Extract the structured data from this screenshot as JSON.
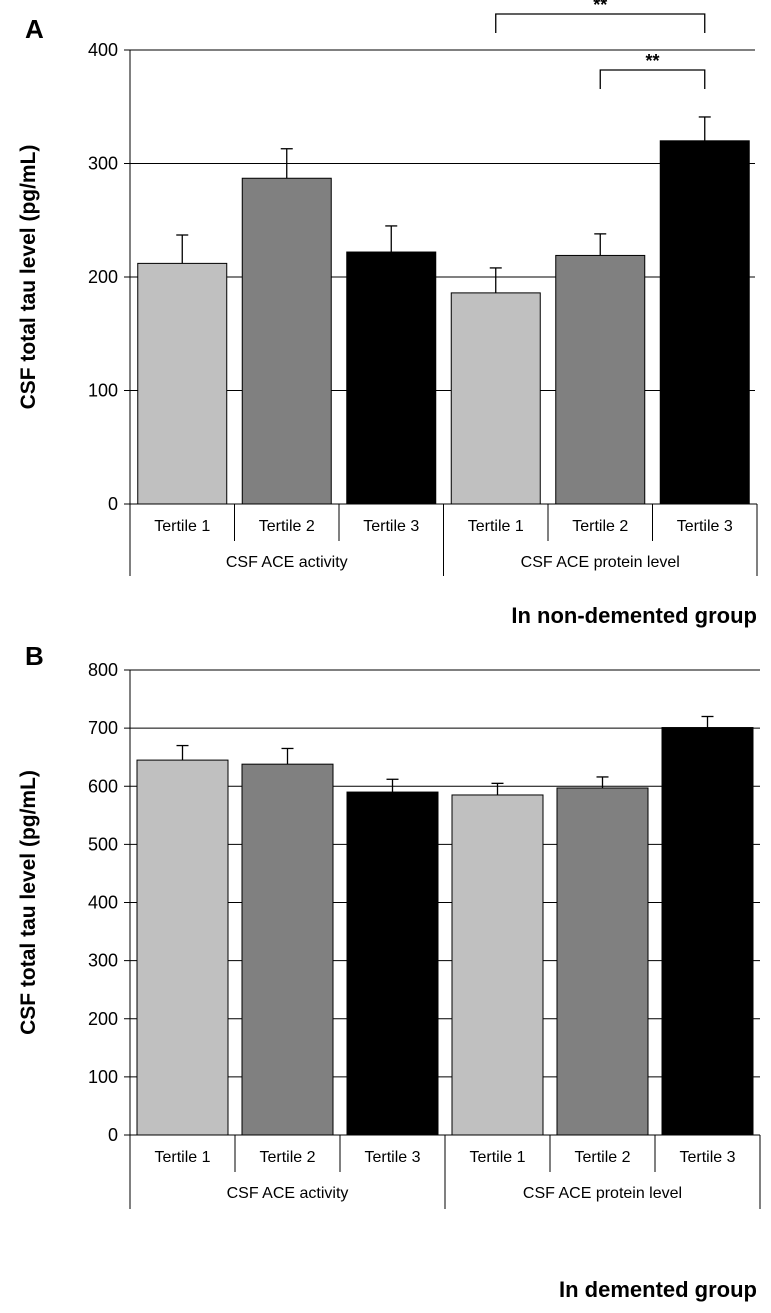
{
  "colors": {
    "tertile_1": "#c0c0c0",
    "tertile_2": "#808080",
    "tertile_3": "#000000",
    "grid": "#000000"
  },
  "chart_data": [
    {
      "type": "bar",
      "panel_label": "A",
      "ylabel": "CSF total tau  level (pg/mL)",
      "ylim": [
        0,
        400
      ],
      "yticks": [
        0,
        100,
        200,
        300,
        400
      ],
      "grid": true,
      "categories": [
        "Tertile 1",
        "Tertile 2",
        "Tertile 3",
        "Tertile 1",
        "Tertile 2",
        "Tertile 3"
      ],
      "groups": [
        {
          "label": "CSF ACE activity",
          "categories": 3
        },
        {
          "label": "CSF ACE protein level",
          "categories": 3
        }
      ],
      "values": [
        212,
        287,
        222,
        186,
        219,
        320
      ],
      "errors": [
        25,
        26,
        23,
        22,
        19,
        21
      ],
      "bar_colors": [
        "#c0c0c0",
        "#808080",
        "#000000",
        "#c0c0c0",
        "#808080",
        "#000000"
      ],
      "significance": [
        {
          "from": 3,
          "to": 5,
          "label": "**"
        },
        {
          "from": 4,
          "to": 5,
          "label": "**"
        }
      ],
      "caption": "In non-demented group"
    },
    {
      "type": "bar",
      "panel_label": "B",
      "ylabel": "CSF total tau  level (pg/mL)",
      "ylim": [
        0,
        800
      ],
      "yticks": [
        0,
        100,
        200,
        300,
        400,
        500,
        600,
        700,
        800
      ],
      "grid": true,
      "categories": [
        "Tertile 1",
        "Tertile 2",
        "Tertile 3",
        "Tertile 1",
        "Tertile 2",
        "Tertile 3"
      ],
      "groups": [
        {
          "label": "CSF ACE activity",
          "categories": 3
        },
        {
          "label": "CSF ACE protein level",
          "categories": 3
        }
      ],
      "values": [
        645,
        638,
        590,
        585,
        597,
        701
      ],
      "errors": [
        25,
        27,
        22,
        20,
        19,
        19
      ],
      "bar_colors": [
        "#c0c0c0",
        "#808080",
        "#000000",
        "#c0c0c0",
        "#808080",
        "#000000"
      ],
      "significance": [],
      "caption": "In demented group"
    }
  ]
}
